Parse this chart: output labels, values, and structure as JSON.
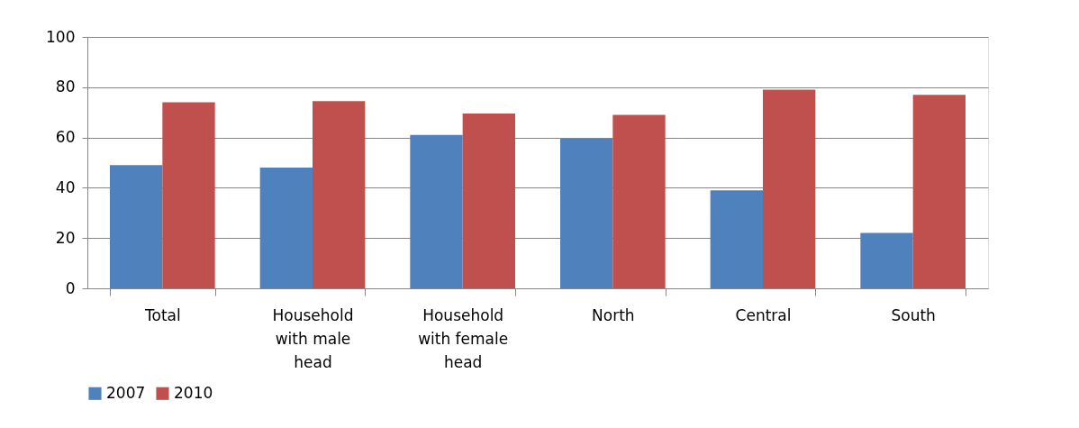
{
  "chart_data": {
    "type": "bar",
    "categories": [
      "Total",
      "Household with male head",
      "Household with female head",
      "North",
      "Central",
      "South"
    ],
    "series": [
      {
        "name": "2007",
        "color": "#4f81bd",
        "values": [
          49,
          48,
          61,
          59.5,
          39,
          22
        ]
      },
      {
        "name": "2010",
        "color": "#c0504d",
        "values": [
          74,
          74.5,
          69.5,
          69,
          79,
          77
        ]
      }
    ],
    "ylim": [
      0,
      100
    ],
    "yticks": [
      0,
      20,
      40,
      60,
      80,
      100
    ],
    "grid": "y",
    "legend": "bottom"
  }
}
